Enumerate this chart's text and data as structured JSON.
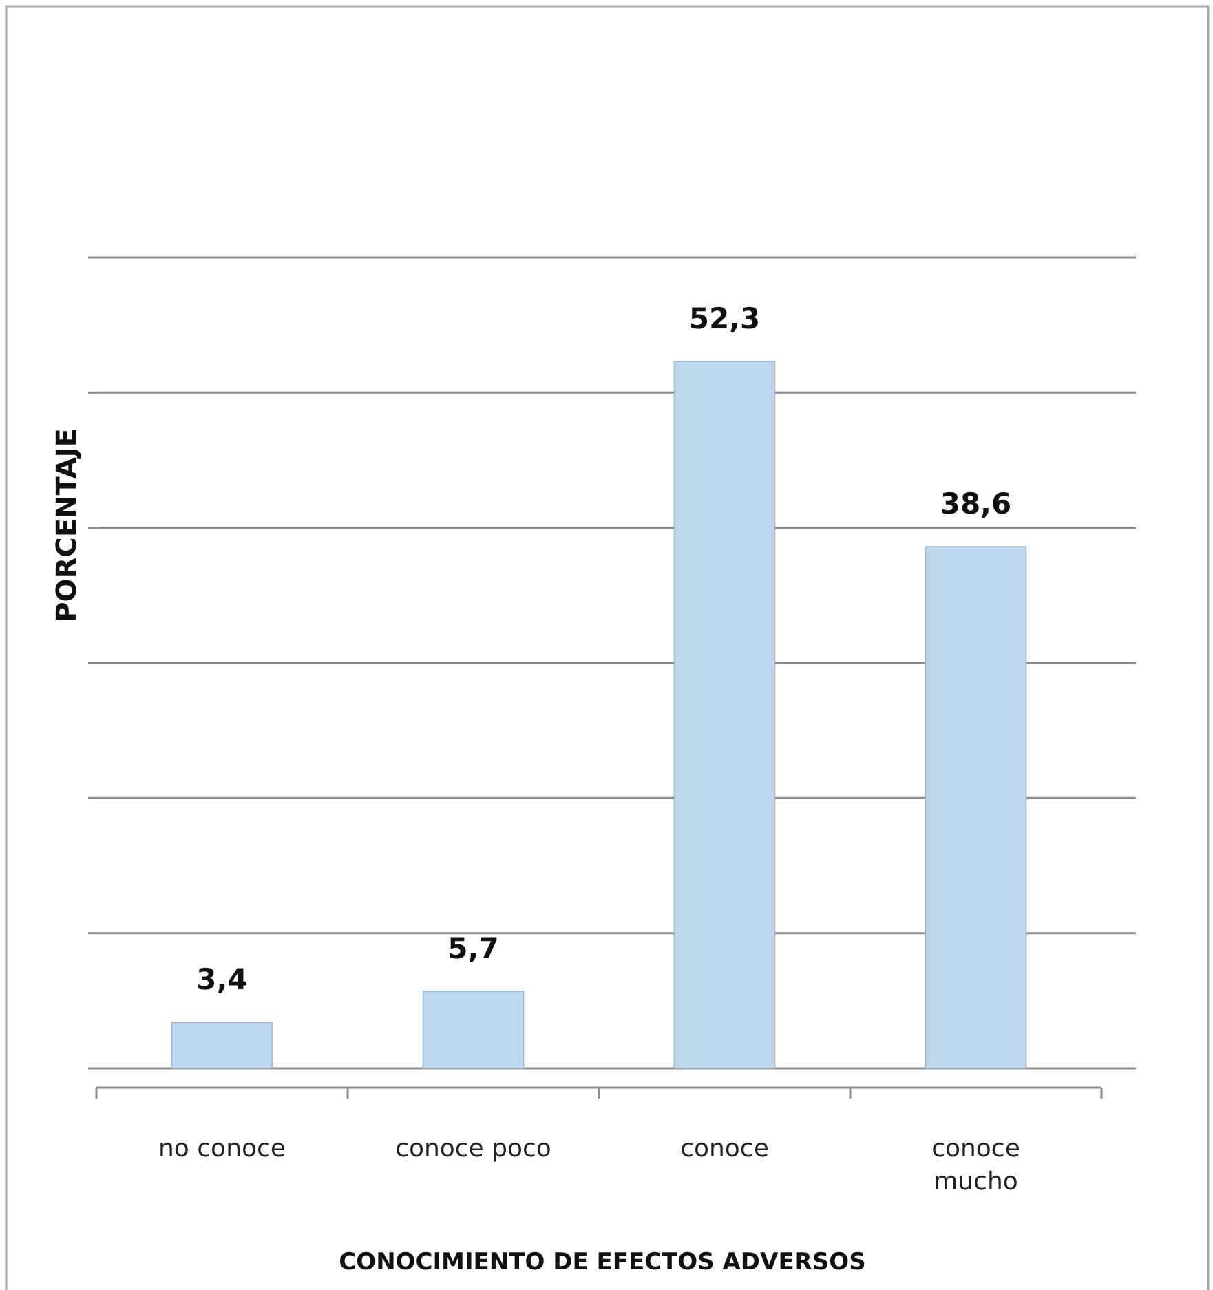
{
  "chart_data": {
    "type": "bar",
    "xlabel": "CONOCIMIENTO DE EFECTOS ADVERSOS",
    "ylabel": "PORCENTAJE",
    "categories": [
      "no conoce",
      "conoce poco",
      "conoce",
      "conoce mucho"
    ],
    "values": [
      3.4,
      5.7,
      52.3,
      38.6
    ],
    "value_labels": [
      "3,4",
      "5,7",
      "52,3",
      "38,6"
    ],
    "color": "#bdd7ee",
    "ylim": [
      0,
      60
    ],
    "yticks": [
      {
        "value": 0,
        "label": null
      },
      {
        "value": 10,
        "label": null
      },
      {
        "value": 20,
        "label": null
      },
      {
        "value": 30,
        "label": null
      },
      {
        "value": 40,
        "label": null
      },
      {
        "value": 50,
        "label": null
      },
      {
        "value": 60,
        "label": null
      }
    ],
    "tick_labels": "x",
    "grid": "y"
  }
}
